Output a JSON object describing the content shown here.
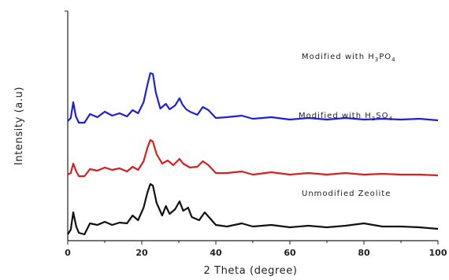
{
  "chart_data": {
    "type": "line",
    "xlabel": "2 Theta (degree)",
    "ylabel": "Intensity (a.u)",
    "xlim": [
      0,
      100
    ],
    "x_ticks": [
      "0",
      "20",
      "40",
      "60",
      "80",
      "100"
    ],
    "y_ticks_labeled": false,
    "grid": false,
    "legend": "none (series labels placed beside each trace)",
    "series": [
      {
        "name": "Modified with H3PO4",
        "label_parts": [
          "Modified with H",
          "3",
          "PO",
          "4"
        ],
        "color": "#1f1fd6",
        "points": [
          [
            0,
            86
          ],
          [
            0.8,
            90
          ],
          [
            1.5,
            110
          ],
          [
            2.2,
            92
          ],
          [
            3,
            84
          ],
          [
            4.5,
            84
          ],
          [
            6,
            95
          ],
          [
            8,
            91
          ],
          [
            10,
            98
          ],
          [
            12,
            93
          ],
          [
            14,
            96
          ],
          [
            16,
            92
          ],
          [
            17.5,
            100
          ],
          [
            19,
            96
          ],
          [
            20.5,
            110
          ],
          [
            21.5,
            132
          ],
          [
            22.3,
            147
          ],
          [
            23,
            146
          ],
          [
            23.8,
            122
          ],
          [
            25,
            102
          ],
          [
            26.5,
            108
          ],
          [
            27.5,
            101
          ],
          [
            29,
            106
          ],
          [
            30.2,
            115
          ],
          [
            31,
            107
          ],
          [
            32,
            101
          ],
          [
            33,
            98
          ],
          [
            35,
            94
          ],
          [
            36.5,
            104
          ],
          [
            38,
            100
          ],
          [
            40,
            90
          ],
          [
            43,
            91
          ],
          [
            47,
            93
          ],
          [
            50,
            89
          ],
          [
            55,
            91
          ],
          [
            60,
            88
          ],
          [
            65,
            90
          ],
          [
            70,
            88
          ],
          [
            75,
            90
          ],
          [
            80,
            88
          ],
          [
            85,
            89
          ],
          [
            90,
            88
          ],
          [
            95,
            89
          ],
          [
            100,
            87
          ]
        ]
      },
      {
        "name": "Modified with H2SO4",
        "label_parts": [
          "Modified with H",
          "2",
          "SO",
          "4"
        ],
        "color": "#d62020",
        "points": [
          [
            0,
            18
          ],
          [
            0.8,
            20
          ],
          [
            1.5,
            32
          ],
          [
            2.3,
            22
          ],
          [
            3,
            16
          ],
          [
            4.5,
            16
          ],
          [
            6,
            25
          ],
          [
            8,
            23
          ],
          [
            10,
            27
          ],
          [
            12,
            24
          ],
          [
            14,
            26
          ],
          [
            16,
            22
          ],
          [
            17.5,
            28
          ],
          [
            19,
            24
          ],
          [
            20.5,
            35
          ],
          [
            21.5,
            52
          ],
          [
            22.3,
            62
          ],
          [
            23,
            60
          ],
          [
            24,
            44
          ],
          [
            25.5,
            32
          ],
          [
            27,
            36
          ],
          [
            28.5,
            30
          ],
          [
            30.2,
            38
          ],
          [
            31.2,
            32
          ],
          [
            33,
            27
          ],
          [
            35,
            28
          ],
          [
            36.5,
            35
          ],
          [
            38,
            30
          ],
          [
            40,
            20
          ],
          [
            43,
            20
          ],
          [
            47,
            22
          ],
          [
            50,
            18
          ],
          [
            55,
            21
          ],
          [
            60,
            18
          ],
          [
            65,
            20
          ],
          [
            70,
            18
          ],
          [
            75,
            20
          ],
          [
            80,
            18
          ],
          [
            85,
            19
          ],
          [
            90,
            18
          ],
          [
            95,
            18
          ],
          [
            100,
            17
          ]
        ]
      },
      {
        "name": "Unmodified Zeolite",
        "label_parts": [
          "Unmodified Zeolite"
        ],
        "color": "#111111",
        "points": [
          [
            0,
            -58
          ],
          [
            0.8,
            -52
          ],
          [
            1.5,
            -30
          ],
          [
            2.3,
            -48
          ],
          [
            3,
            -56
          ],
          [
            4.5,
            -58
          ],
          [
            6,
            -44
          ],
          [
            8,
            -46
          ],
          [
            10,
            -42
          ],
          [
            12,
            -46
          ],
          [
            14,
            -43
          ],
          [
            16,
            -44
          ],
          [
            17.5,
            -34
          ],
          [
            19,
            -40
          ],
          [
            20.5,
            -24
          ],
          [
            21.5,
            -5
          ],
          [
            22.3,
            6
          ],
          [
            23,
            4
          ],
          [
            24,
            -18
          ],
          [
            25.5,
            -34
          ],
          [
            26.5,
            -22
          ],
          [
            27.5,
            -32
          ],
          [
            29,
            -26
          ],
          [
            30.2,
            -16
          ],
          [
            31.2,
            -28
          ],
          [
            32.5,
            -24
          ],
          [
            33.5,
            -36
          ],
          [
            35.5,
            -40
          ],
          [
            37,
            -30
          ],
          [
            38.5,
            -38
          ],
          [
            40,
            -46
          ],
          [
            43,
            -48
          ],
          [
            47,
            -44
          ],
          [
            50,
            -48
          ],
          [
            55,
            -46
          ],
          [
            60,
            -49
          ],
          [
            65,
            -47
          ],
          [
            70,
            -49
          ],
          [
            75,
            -47
          ],
          [
            80,
            -44
          ],
          [
            85,
            -48
          ],
          [
            90,
            -48
          ],
          [
            95,
            -49
          ],
          [
            100,
            -51
          ]
        ]
      }
    ]
  }
}
